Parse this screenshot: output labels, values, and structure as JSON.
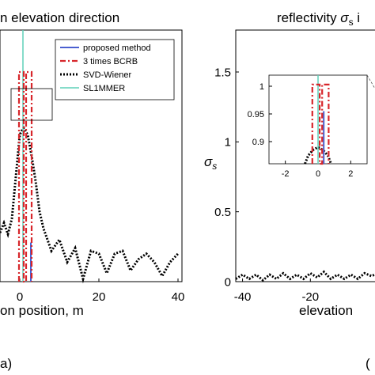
{
  "chart_data": [
    {
      "type": "line",
      "title": "n elevation direction",
      "xlabel": "on position, m",
      "ylabel": "",
      "xlim": [
        -5,
        41
      ],
      "ylim": [
        0,
        1.8
      ],
      "xticks": [
        0,
        20,
        40
      ],
      "panel_label": "a)",
      "legend": {
        "placement": "top-right",
        "entries": [
          {
            "name": "proposed method",
            "color": "#4a5fd0",
            "style": "solid"
          },
          {
            "name": "3 times BCRB",
            "color": "#d7262b",
            "style": "dashdot"
          },
          {
            "name": "SVD-Wiener",
            "color": "#000000",
            "style": "dotted"
          },
          {
            "name": "SL1MMER",
            "color": "#5fd0b8",
            "style": "solid"
          }
        ]
      },
      "series": [
        {
          "name": "SVD-Wiener",
          "x": [
            -5,
            -4,
            -3,
            -2,
            -1,
            0,
            0.5,
            1,
            2,
            3,
            4,
            5,
            6,
            8,
            10,
            12,
            14,
            16,
            18,
            20,
            22,
            24,
            26,
            28,
            30,
            32,
            34,
            36,
            38,
            40
          ],
          "y": [
            0.35,
            0.42,
            0.34,
            0.45,
            0.75,
            1.05,
            1.08,
            1.1,
            1.05,
            0.9,
            0.72,
            0.5,
            0.38,
            0.22,
            0.3,
            0.14,
            0.24,
            0.02,
            0.22,
            0.2,
            0.06,
            0.2,
            0.22,
            0.08,
            0.16,
            0.2,
            0.14,
            0.04,
            0.14,
            0.2
          ]
        },
        {
          "name": "SL1MMER",
          "x": [
            0.8,
            0.8
          ],
          "y": [
            0,
            1.8
          ]
        },
        {
          "name": "proposed method",
          "x": [
            2.8,
            2.8
          ],
          "y": [
            0,
            0.28
          ]
        },
        {
          "name": "3 times BCRB",
          "note_free": true,
          "x": [
            -0.2,
            -0.2,
            1.0,
            1.0,
            1.6,
            1.6,
            3.0,
            3.0
          ],
          "y": [
            0,
            1.5,
            1.5,
            0,
            0,
            1.5,
            1.5,
            0
          ]
        }
      ]
    },
    {
      "type": "line",
      "title": "reflectivity σ_s i",
      "xlabel": "elevation",
      "ylabel": "σ_s",
      "xlim": [
        -42,
        0
      ],
      "ylim": [
        0,
        1.8
      ],
      "xticks": [
        -40,
        -20
      ],
      "yticks": [
        0,
        0.5,
        1,
        1.5
      ],
      "panel_label": "(",
      "series": [
        {
          "name": "SVD-Wiener",
          "x": [
            -42,
            -40,
            -38,
            -36,
            -34,
            -32,
            -30,
            -28,
            -26,
            -24,
            -22,
            -20,
            -18,
            -16,
            -14,
            -12,
            -10,
            -8,
            -6,
            -4,
            -2,
            0
          ],
          "y": [
            0.02,
            0.05,
            0.02,
            0.05,
            0.01,
            0.05,
            0.02,
            0.06,
            0.02,
            0.05,
            0.02,
            0.06,
            0.03,
            0.07,
            0.02,
            0.05,
            0.02,
            0.05,
            0.02,
            0.06,
            0.04,
            0.06
          ]
        }
      ],
      "inset": {
        "xlim": [
          -3,
          3
        ],
        "ylim": [
          0.86,
          1.02
        ],
        "xticks": [
          -2,
          0,
          2
        ],
        "yticks": [
          0.9,
          0.95,
          1
        ],
        "series": [
          {
            "name": "SVD-Wiener",
            "x": [
              -0.8,
              -0.6,
              -0.3,
              0,
              0.3,
              0.6,
              0.8
            ],
            "y": [
              0.86,
              0.875,
              0.885,
              0.89,
              0.885,
              0.875,
              0.86
            ]
          },
          {
            "name": "SL1MMER",
            "x": [
              0,
              0
            ],
            "y": [
              0.86,
              1.02
            ]
          },
          {
            "name": "proposed method",
            "x": [
              0.35,
              0.35
            ],
            "y": [
              0.86,
              0.955
            ]
          },
          {
            "name": "3 times BCRB",
            "x": [
              -0.35,
              -0.35,
              0.1,
              0.1,
              0.25,
              0.25,
              0.65,
              0.65
            ],
            "y": [
              0.86,
              1.003,
              1.003,
              0.86,
              0.86,
              1.003,
              1.003,
              0.86
            ]
          }
        ]
      }
    }
  ]
}
